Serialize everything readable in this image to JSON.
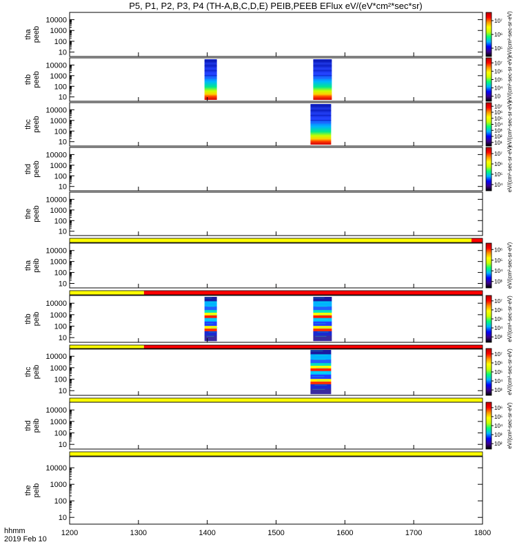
{
  "page": {
    "title": "P5, P1, P2, P3, P4 (TH-A,B,C,D,E) PEIB,PEEB EFlux eV/(eV*cm²*sec*sr)",
    "time_label_1": "hhmm",
    "time_label_2": "2019 Feb 10"
  },
  "chart_data": {
    "type": "heatmap",
    "x_range": [
      1200,
      1800
    ],
    "x_ticks": [
      "1200",
      "1300",
      "1400",
      "1500",
      "1600",
      "1700",
      "1800"
    ],
    "y_scale": "log",
    "y_ticks": [
      "10",
      "100",
      "1000",
      "10000"
    ],
    "colormap": [
      "#000000",
      "#3c008c",
      "#0000ff",
      "#00b4ff",
      "#00ff78",
      "#c8ff00",
      "#ffff00",
      "#ff9600",
      "#ff0000",
      "#b40000"
    ],
    "panels": [
      {
        "l1": "tha",
        "l2": "peeb",
        "cbar": {
          "ticks": [
            "10⁵",
            "10⁶",
            "10⁷"
          ],
          "label": "eV/(cm²-sec-sr-eV)"
        },
        "blocks": [],
        "flag_after": []
      },
      {
        "l1": "thb",
        "l2": "peeb",
        "cbar": {
          "ticks": [
            "10⁳",
            "10⁴",
            "10⁵",
            "10⁶",
            "10⁷"
          ],
          "label": "eV/(cm²-sec-sr-eV)"
        },
        "blocks": [
          {
            "t0": 1396,
            "t1": 1414,
            "style": "warm-low"
          },
          {
            "t0": 1554,
            "t1": 1581,
            "style": "warm-low"
          }
        ],
        "flag_after": []
      },
      {
        "l1": "thc",
        "l2": "peeb",
        "cbar": {
          "ticks": [
            "10¹",
            "10²",
            "10³",
            "10⁴",
            "10⁵",
            "10⁶",
            "10⁷"
          ],
          "label": "eV/(cm²-sec-sr-eV)"
        },
        "blocks": [
          {
            "t0": 1550,
            "t1": 1580,
            "style": "warm-low"
          }
        ],
        "flag_after": []
      },
      {
        "l1": "thd",
        "l2": "peeb",
        "cbar": {
          "ticks": [
            "10⁴",
            "10⁵",
            "10⁶",
            "10⁷"
          ],
          "label": "eV/(cm²-sec-sr-eV)"
        },
        "blocks": [],
        "flag_after": []
      },
      {
        "l1": "the",
        "l2": "peeb",
        "cbar": null,
        "blocks": [],
        "flag_after": [
          {
            "t0": 1200,
            "t1": 1784,
            "color": "#ffff00"
          },
          {
            "t0": 1784,
            "t1": 1800,
            "color": "#ff0000"
          }
        ]
      },
      {
        "l1": "tha",
        "l2": "peib",
        "cbar": {
          "ticks": [
            "10³",
            "10⁴",
            "10⁵",
            "10⁶"
          ],
          "label": "eV/(cm²-sec-sr-eV)"
        },
        "blocks": [],
        "flag_after": [
          {
            "t0": 1200,
            "t1": 1308,
            "color": "#ffff00"
          },
          {
            "t0": 1308,
            "t1": 1800,
            "color": "#ff0000"
          }
        ]
      },
      {
        "l1": "thb",
        "l2": "peib",
        "cbar": {
          "ticks": [
            "10³",
            "10⁴",
            "10⁵",
            "10⁶",
            "10⁷"
          ],
          "label": "eV/(cm²-sec-sr-eV)"
        },
        "blocks": [
          {
            "t0": 1396,
            "t1": 1414,
            "style": "mixed"
          },
          {
            "t0": 1554,
            "t1": 1581,
            "style": "mixed"
          }
        ],
        "flag_after": [
          {
            "t0": 1200,
            "t1": 1308,
            "color": "#ffff00"
          },
          {
            "t0": 1308,
            "t1": 1800,
            "color": "#ff0000"
          }
        ]
      },
      {
        "l1": "thc",
        "l2": "peib",
        "cbar": {
          "ticks": [
            "10³",
            "10⁴",
            "10⁵",
            "10⁶",
            "10⁷"
          ],
          "label": "eV/(cm²-sec-sr-eV)"
        },
        "blocks": [
          {
            "t0": 1550,
            "t1": 1580,
            "style": "mixed"
          }
        ],
        "flag_after": [
          {
            "t0": 1200,
            "t1": 1800,
            "color": "#ffff00"
          }
        ]
      },
      {
        "l1": "thd",
        "l2": "peib",
        "cbar": {
          "ticks": [
            "10²",
            "10³",
            "10⁴",
            "10⁵",
            "10⁶"
          ],
          "label": "eV/(cm²-sec-sr-eV)"
        },
        "blocks": [],
        "flag_after": [
          {
            "t0": 1200,
            "t1": 1800,
            "color": "#ffff00"
          }
        ]
      },
      {
        "l1": "the",
        "l2": "peib",
        "cbar": null,
        "blocks": [],
        "flag_after": []
      }
    ]
  }
}
